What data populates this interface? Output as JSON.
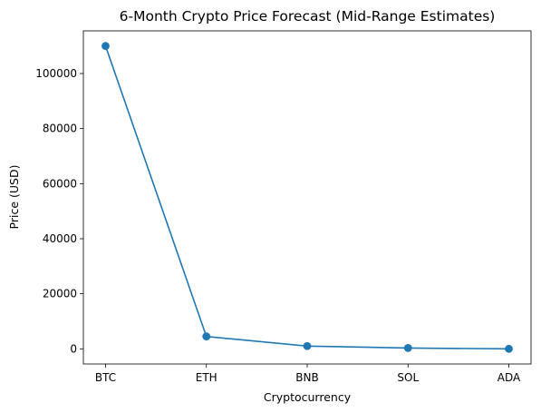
{
  "chart_data": {
    "type": "line",
    "title": "6-Month Crypto Price Forecast (Mid-Range Estimates)",
    "xlabel": "Cryptocurrency",
    "ylabel": "Price (USD)",
    "categories": [
      "BTC",
      "ETH",
      "BNB",
      "SOL",
      "ADA"
    ],
    "series": [
      {
        "values": [
          110000,
          4500,
          1000,
          300,
          0.8
        ],
        "color": "#1f77b4",
        "marker": "circle"
      }
    ],
    "ylim": [
      -5500,
      115500
    ],
    "yticks": [
      0,
      20000,
      40000,
      60000,
      80000,
      100000
    ],
    "ytick_labels": [
      "0",
      "20000",
      "40000",
      "60000",
      "80000",
      "100000"
    ],
    "grid": false,
    "legend": "none"
  }
}
